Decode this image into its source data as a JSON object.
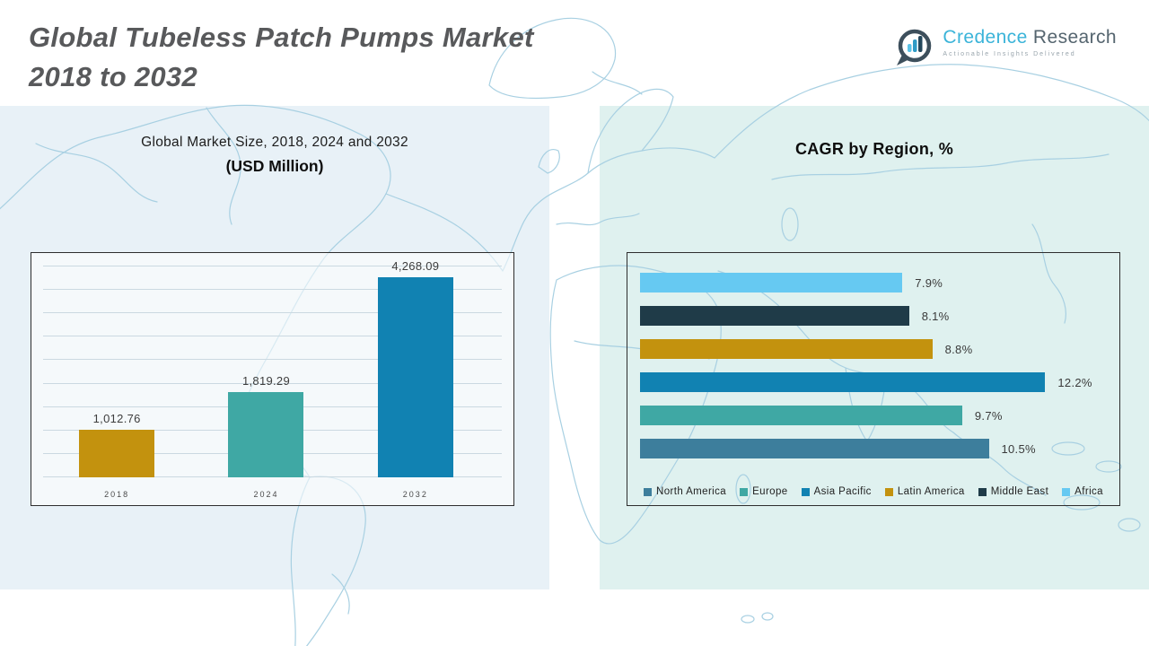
{
  "header": {
    "title_line1": "Global Tubeless Patch Pumps Market",
    "title_line2": "2018 to 2032"
  },
  "logo": {
    "brand_primary": "Credence",
    "brand_secondary": "Research",
    "tagline": "Actionable Insights Delivered"
  },
  "market_chart": {
    "title_line1": "Global Market Size, 2018, 2024 and 2032",
    "title_line2": "(USD Million)"
  },
  "cagr_chart": {
    "title": "CAGR by Region, %"
  },
  "colors": {
    "gold": "#C3920E",
    "teal": "#3FA8A4",
    "blue": "#1182B2",
    "light_blue": "#66C9F2",
    "dark_navy": "#1F3B48",
    "steel_blue": "#3D7E9C",
    "left_panel_bg": "#E8F1F7",
    "right_panel_bg": "#DFF1EF",
    "map_line": "#A8D0E2"
  },
  "chart_data": [
    {
      "id": "market_size",
      "type": "bar",
      "title": "Global Market Size, 2018, 2024 and 2032 (USD Million)",
      "categories": [
        "2018",
        "2024",
        "2032"
      ],
      "values": [
        1012.76,
        1819.29,
        4268.09
      ],
      "value_labels": [
        "1,012.76",
        "1,819.29",
        "4,268.09"
      ],
      "bar_colors": [
        "#C3920E",
        "#3FA8A4",
        "#1182B2"
      ],
      "ylabel": "USD Million",
      "ylim": [
        0,
        4500
      ],
      "gridline_step": 500,
      "grid": true,
      "legend_position": "none"
    },
    {
      "id": "cagr_by_region",
      "type": "bar",
      "orientation": "horizontal",
      "title": "CAGR by Region, %",
      "rows_top_to_bottom": [
        {
          "region": "Africa",
          "value": 7.9,
          "label": "7.9%",
          "color": "#66C9F2"
        },
        {
          "region": "Middle East",
          "value": 8.1,
          "label": "8.1%",
          "color": "#1F3B48"
        },
        {
          "region": "Latin America",
          "value": 8.8,
          "label": "8.8%",
          "color": "#C3920E"
        },
        {
          "region": "Asia Pacific",
          "value": 12.2,
          "label": "12.2%",
          "color": "#1182B2"
        },
        {
          "region": "Europe",
          "value": 9.7,
          "label": "9.7%",
          "color": "#3FA8A4"
        },
        {
          "region": "North America",
          "value": 10.5,
          "label": "10.5%",
          "color": "#3D7E9C"
        }
      ],
      "xlim": [
        0,
        13
      ],
      "grid": false,
      "legend_position": "bottom",
      "legend": [
        {
          "label": "North America",
          "color": "#3D7E9C"
        },
        {
          "label": "Europe",
          "color": "#3FA8A4"
        },
        {
          "label": "Asia Pacific",
          "color": "#1182B2"
        },
        {
          "label": "Latin America",
          "color": "#C3920E"
        },
        {
          "label": "Middle East",
          "color": "#1F3B48"
        },
        {
          "label": "Africa",
          "color": "#66C9F2"
        }
      ]
    }
  ]
}
